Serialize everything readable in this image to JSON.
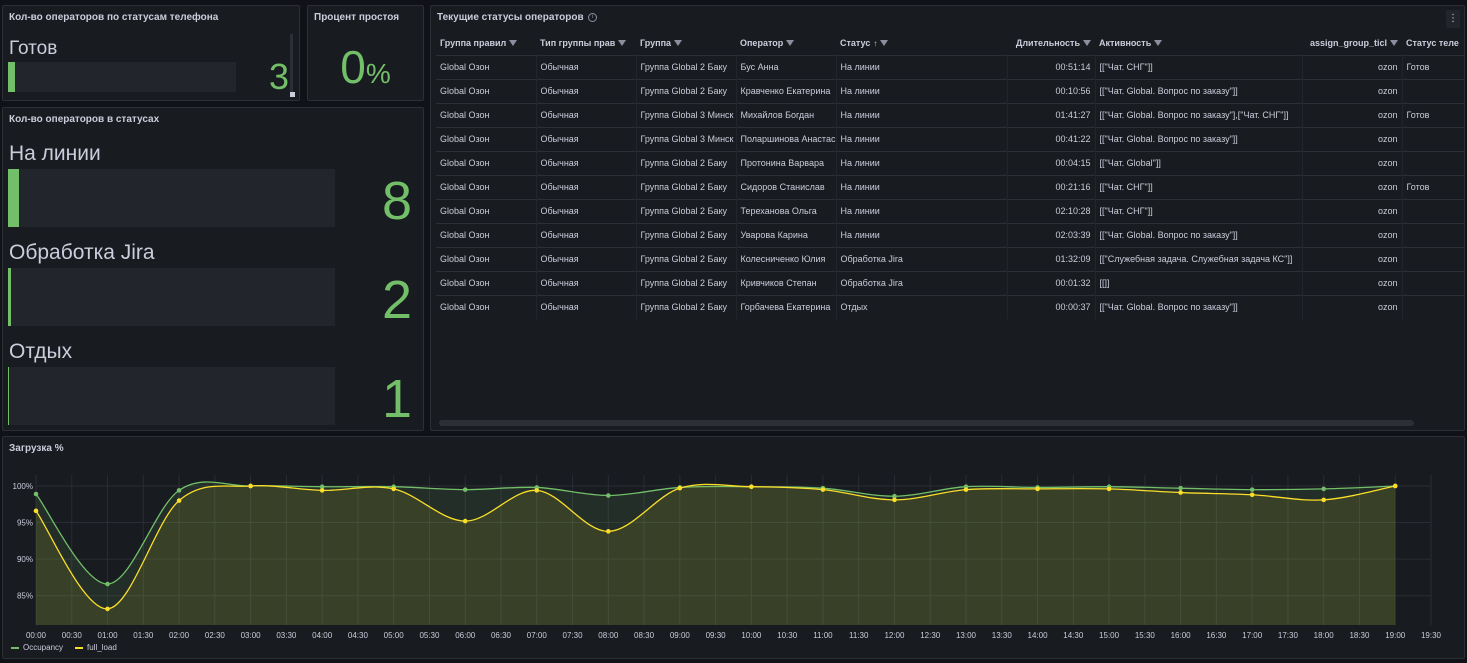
{
  "phone_panel": {
    "title": "Кол-во операторов по статусам телефона",
    "items": [
      {
        "label": "Готов",
        "value": "3",
        "fraction": 0.03
      }
    ]
  },
  "idle_panel": {
    "title": "Процент простоя",
    "value": "0",
    "unit": "%"
  },
  "status_panel": {
    "title": "Кол-во операторов в статусах",
    "items": [
      {
        "label": "На линии",
        "value": "8",
        "fraction": 1.0
      },
      {
        "label": "Обработка Jira",
        "value": "2",
        "fraction": 0.25
      },
      {
        "label": "Отдых",
        "value": "1",
        "fraction": 0.02
      }
    ]
  },
  "table_panel": {
    "title": "Текущие статусы операторов",
    "columns": [
      "Группа правил",
      "Тип группы прав",
      "Группа",
      "Оператор",
      "Статус",
      "Длительность",
      "Активность",
      "assign_group_ticl",
      "Статус теле"
    ],
    "rows": [
      [
        "Global Озон",
        "Обычная",
        "Группа Global 2 Баку",
        "Бус Анна",
        "На линии",
        "00:51:14",
        "[[\"Чат. СНГ\"]]",
        "ozon",
        "Готов"
      ],
      [
        "Global Озон",
        "Обычная",
        "Группа Global 2 Баку",
        "Кравченко Екатерина",
        "На линии",
        "00:10:56",
        "[[\"Чат. Global. Вопрос по заказу\"]]",
        "ozon",
        ""
      ],
      [
        "Global Озон",
        "Обычная",
        "Группа Global 3 Минск",
        "Михайлов Богдан",
        "На линии",
        "01:41:27",
        "[[\"Чат. Global. Вопрос по заказу\"],[\"Чат. СНГ\"]]",
        "ozon",
        "Готов"
      ],
      [
        "Global Озон",
        "Обычная",
        "Группа Global 3 Минск",
        "Поларшинова Анастасия",
        "На линии",
        "00:41:22",
        "[[\"Чат. Global. Вопрос по заказу\"]]",
        "ozon",
        ""
      ],
      [
        "Global Озон",
        "Обычная",
        "Группа Global 2 Баку",
        "Протонина Варвара",
        "На линии",
        "00:04:15",
        "[[\"Чат. Global\"]]",
        "ozon",
        ""
      ],
      [
        "Global Озон",
        "Обычная",
        "Группа Global 2 Баку",
        "Сидоров Станислав",
        "На линии",
        "00:21:16",
        "[[\"Чат. СНГ\"]]",
        "ozon",
        "Готов"
      ],
      [
        "Global Озон",
        "Обычная",
        "Группа Global 2 Баку",
        "Тереханова Ольга",
        "На линии",
        "02:10:28",
        "[[\"Чат. СНГ\"]]",
        "ozon",
        ""
      ],
      [
        "Global Озон",
        "Обычная",
        "Группа Global 2 Баку",
        "Уварова Карина",
        "На линии",
        "02:03:39",
        "[[\"Чат. Global. Вопрос по заказу\"]]",
        "ozon",
        ""
      ],
      [
        "Global Озон",
        "Обычная",
        "Группа Global 2 Баку",
        "Колесниченко Юлия",
        "Обработка Jira",
        "01:32:09",
        "[[\"Служебная задача. Служебная задача КС\"]]",
        "ozon",
        ""
      ],
      [
        "Global Озон",
        "Обычная",
        "Группа Global 2 Баку",
        "Кривчиков Степан",
        "Обработка Jira",
        "00:01:32",
        "[[]]",
        "ozon",
        ""
      ],
      [
        "Global Озон",
        "Обычная",
        "Группа Global 2 Баку",
        "Горбачева Екатерина",
        "Отдых",
        "00:00:37",
        "[[\"Чат. Global. Вопрос по заказу\"]]",
        "ozon",
        ""
      ]
    ]
  },
  "load_panel": {
    "title": "Загрузка %"
  },
  "chart_data": {
    "type": "line",
    "title": "Загрузка %",
    "x_ticks": [
      "00:00",
      "00:30",
      "01:00",
      "01:30",
      "02:00",
      "02:30",
      "03:00",
      "03:30",
      "04:00",
      "04:30",
      "05:00",
      "05:30",
      "06:00",
      "06:30",
      "07:00",
      "07:30",
      "08:00",
      "08:30",
      "09:00",
      "09:30",
      "10:00",
      "10:30",
      "11:00",
      "11:30",
      "12:00",
      "12:30",
      "13:00",
      "13:30",
      "14:00",
      "14:30",
      "15:00",
      "15:30",
      "16:00",
      "16:30",
      "17:00",
      "17:30",
      "18:00",
      "18:30",
      "19:00",
      "19:30"
    ],
    "y_ticks": [
      "85%",
      "90%",
      "95%",
      "100%"
    ],
    "ylim": [
      81,
      101.5
    ],
    "x_hours": [
      0,
      1,
      2,
      3,
      4,
      5,
      6,
      7,
      8,
      9,
      10,
      11,
      12,
      13,
      14,
      15,
      16,
      17,
      18,
      19
    ],
    "series": [
      {
        "name": "Occupancy",
        "color": "#73bf69",
        "values": [
          98.9,
          86.6,
          99.4,
          100,
          99.9,
          99.9,
          99.5,
          99.8,
          98.7,
          99.8,
          99.9,
          99.7,
          98.6,
          99.9,
          99.8,
          99.9,
          99.7,
          99.5,
          99.6,
          100
        ]
      },
      {
        "name": "full_load",
        "color": "#fade2a",
        "values": [
          96.6,
          83.2,
          98.0,
          100,
          99.4,
          99.6,
          95.2,
          99.4,
          93.8,
          99.7,
          99.9,
          99.5,
          98.1,
          99.5,
          99.6,
          99.6,
          99.1,
          98.8,
          98.1,
          100
        ]
      }
    ]
  }
}
